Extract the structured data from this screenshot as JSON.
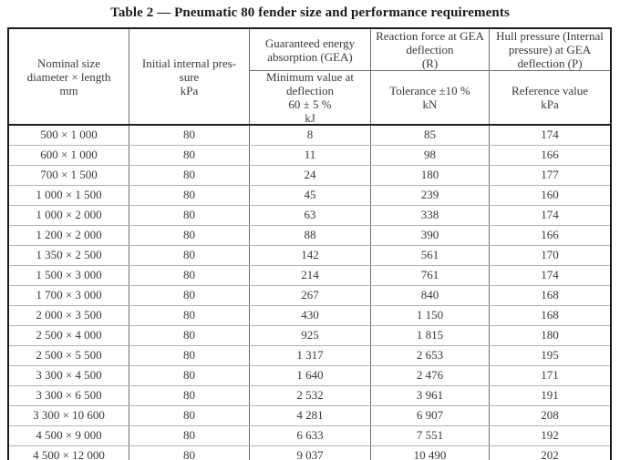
{
  "title": "Table 2 — Pneumatic 80 fender size and performance requirements",
  "header": {
    "nominal_size": "Nominal size\ndiameter × length\nmm",
    "initial_pressure": "Initial internal pres-\nsure\nkPa",
    "gea_top": "Guaranteed energy\nabsorption (GEA)",
    "gea_bottom": "Minimum value at\ndeflection\n60 ± 5 %\nkJ",
    "reaction_top": "Reaction force at GEA\ndeflection\n(R)",
    "reaction_bottom": "Tolerance ±10 %\nkN",
    "hull_top": "Hull pressure (Internal\npressure) at GEA\ndeflection (P)",
    "hull_bottom": "Reference value\nkPa"
  },
  "rows": [
    {
      "size": "500 × 1 000",
      "pressure": "80",
      "gea": "8",
      "reaction": "85",
      "hull": "174"
    },
    {
      "size": "600 × 1 000",
      "pressure": "80",
      "gea": "11",
      "reaction": "98",
      "hull": "166"
    },
    {
      "size": "700 × 1 500",
      "pressure": "80",
      "gea": "24",
      "reaction": "180",
      "hull": "177"
    },
    {
      "size": "1 000 × 1 500",
      "pressure": "80",
      "gea": "45",
      "reaction": "239",
      "hull": "160"
    },
    {
      "size": "1 000 × 2 000",
      "pressure": "80",
      "gea": "63",
      "reaction": "338",
      "hull": "174"
    },
    {
      "size": "1 200 × 2 000",
      "pressure": "80",
      "gea": "88",
      "reaction": "390",
      "hull": "166"
    },
    {
      "size": "1 350 × 2 500",
      "pressure": "80",
      "gea": "142",
      "reaction": "561",
      "hull": "170"
    },
    {
      "size": "1 500 × 3 000",
      "pressure": "80",
      "gea": "214",
      "reaction": "761",
      "hull": "174"
    },
    {
      "size": "1 700 × 3 000",
      "pressure": "80",
      "gea": "267",
      "reaction": "840",
      "hull": "168"
    },
    {
      "size": "2 000 × 3 500",
      "pressure": "80",
      "gea": "430",
      "reaction": "1 150",
      "hull": "168"
    },
    {
      "size": "2 500 × 4 000",
      "pressure": "80",
      "gea": "925",
      "reaction": "1 815",
      "hull": "180"
    },
    {
      "size": "2 500 × 5 500",
      "pressure": "80",
      "gea": "1 317",
      "reaction": "2 653",
      "hull": "195"
    },
    {
      "size": "3 300 × 4 500",
      "pressure": "80",
      "gea": "1 640",
      "reaction": "2 476",
      "hull": "171"
    },
    {
      "size": "3 300 × 6 500",
      "pressure": "80",
      "gea": "2 532",
      "reaction": "3 961",
      "hull": "191"
    },
    {
      "size": "3 300 × 10 600",
      "pressure": "80",
      "gea": "4 281",
      "reaction": "6 907",
      "hull": "208"
    },
    {
      "size": "4 500 × 9 000",
      "pressure": "80",
      "gea": "6 633",
      "reaction": "7 551",
      "hull": "192"
    },
    {
      "size": "4 500 × 12 000",
      "pressure": "80",
      "gea": "9 037",
      "reaction": "10 490",
      "hull": "202"
    }
  ]
}
